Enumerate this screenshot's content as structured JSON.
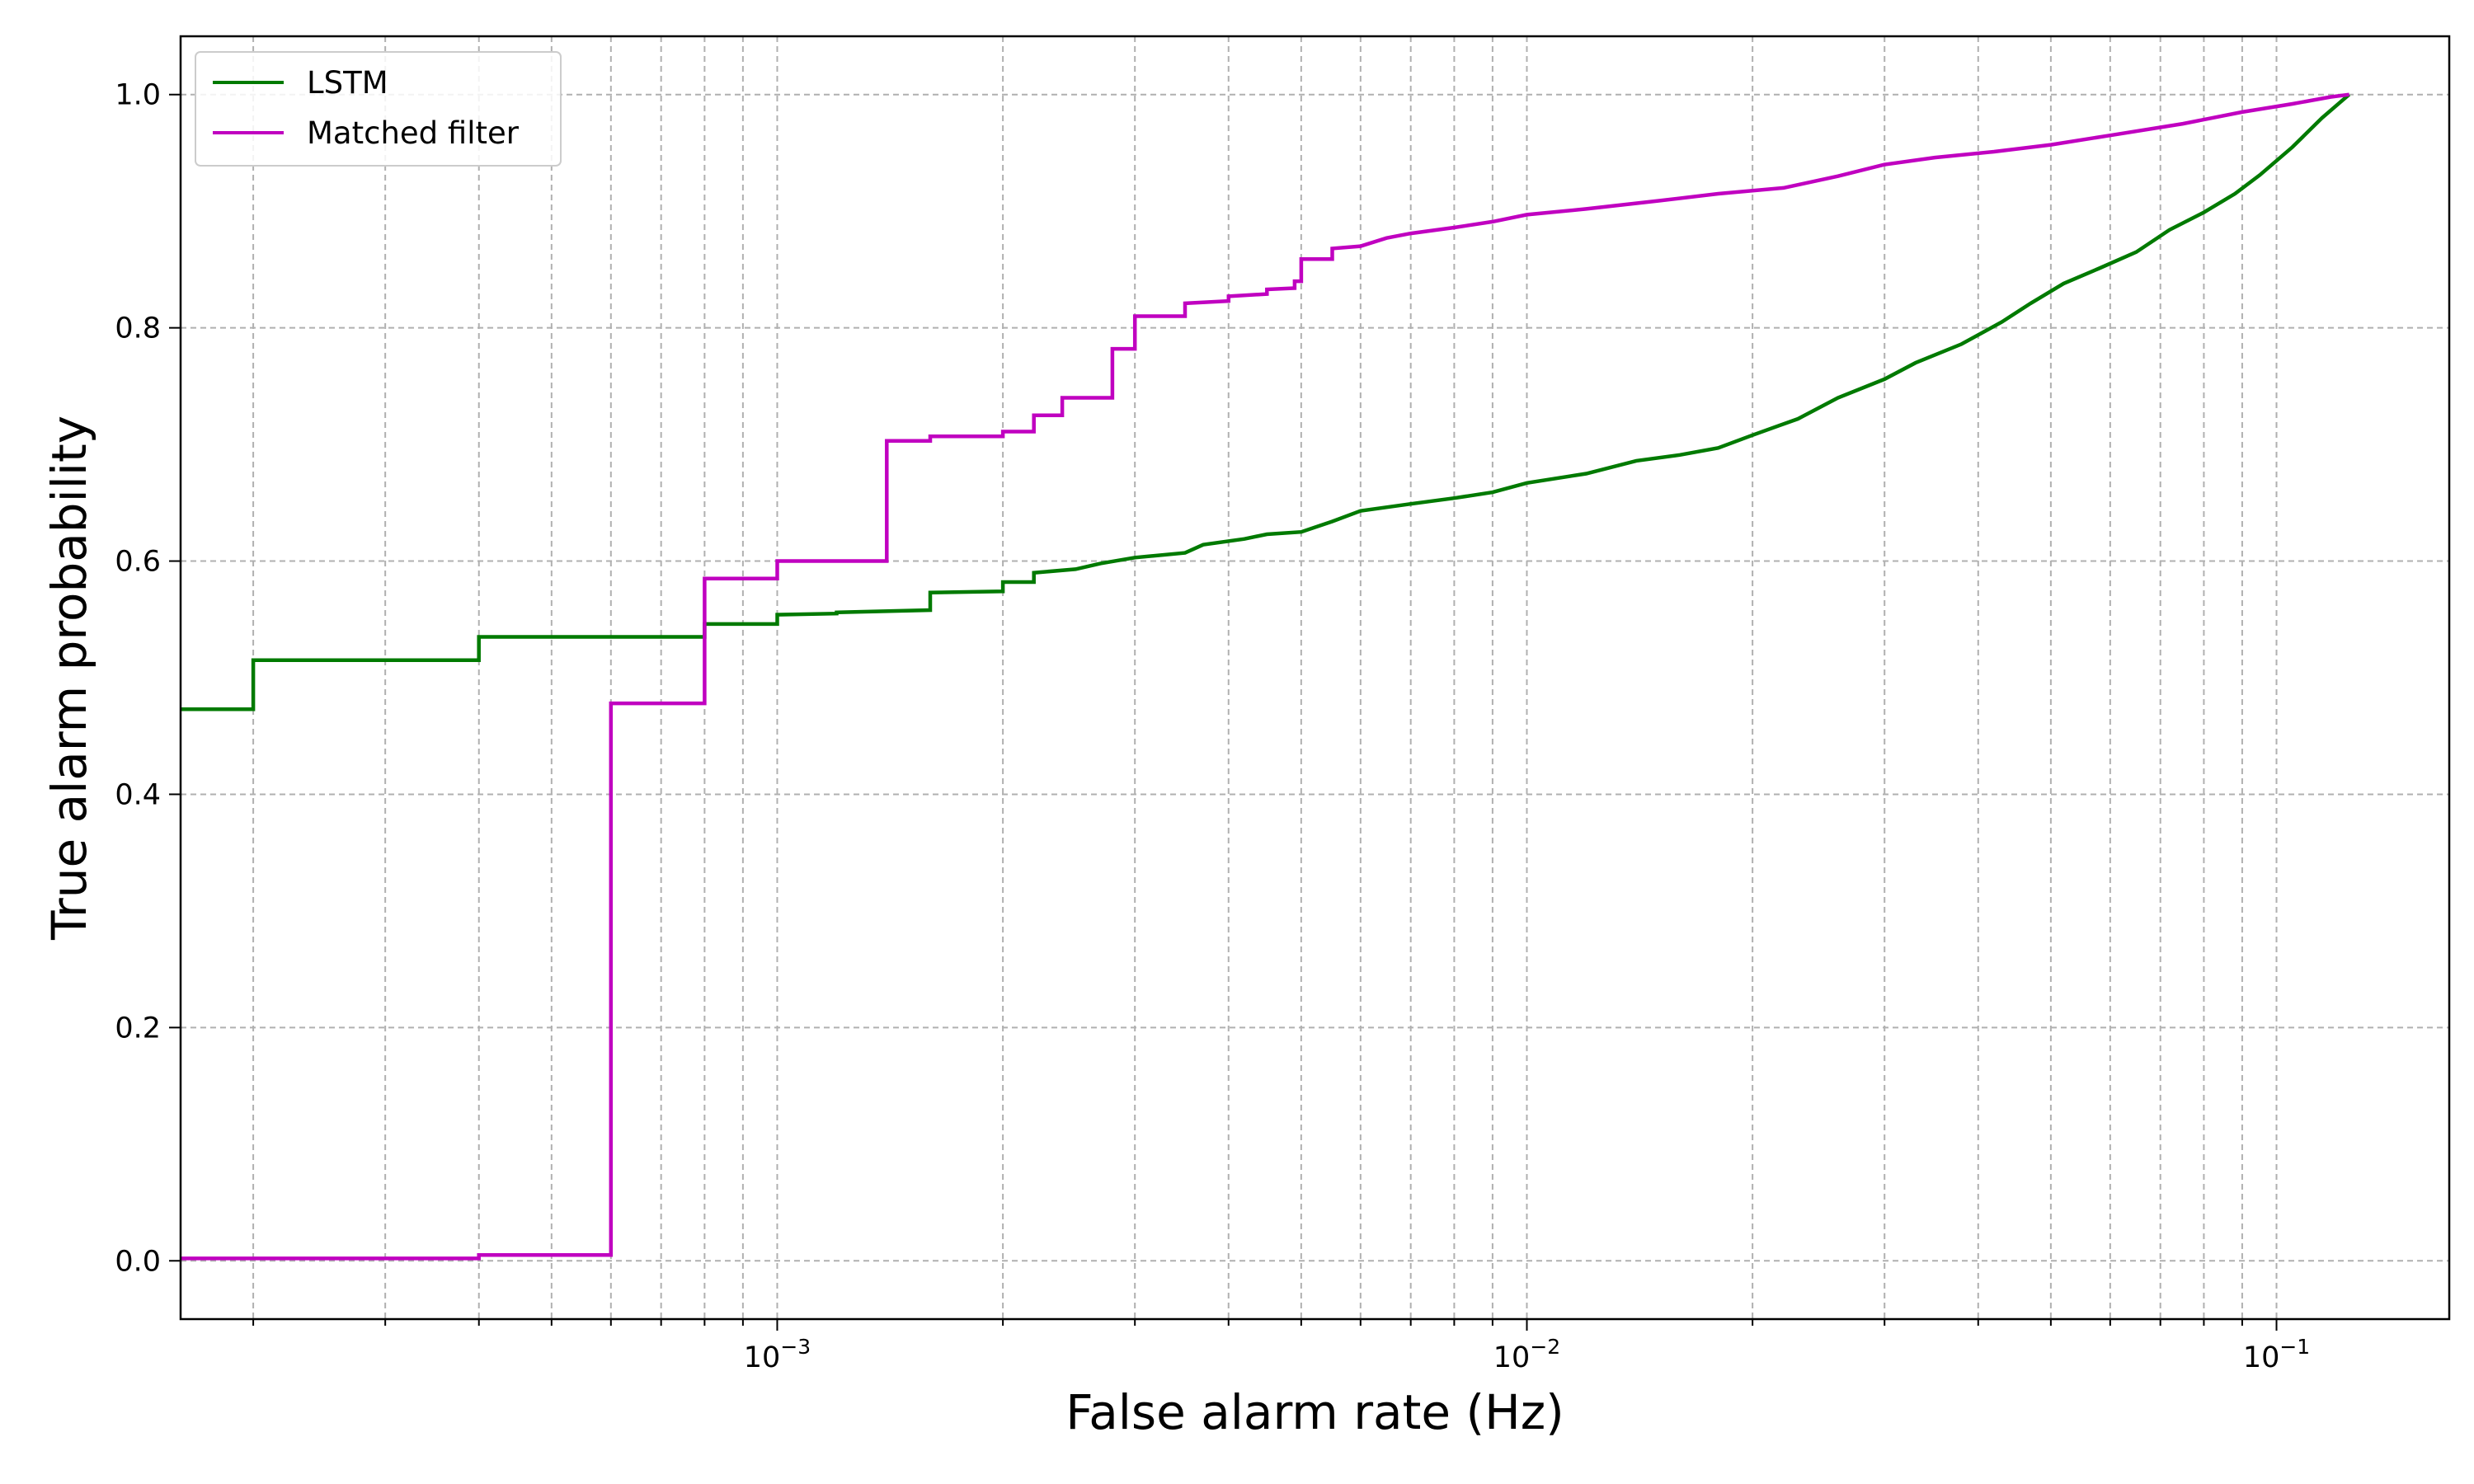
{
  "chart_data": {
    "type": "line",
    "title": "",
    "xlabel": "False alarm rate (Hz)",
    "ylabel": "True alarm probability",
    "x_scale": "log",
    "xlim": [
      0.00016,
      0.17
    ],
    "ylim": [
      -0.05,
      1.05
    ],
    "x_tick_labels": [
      {
        "value": 0.001,
        "base": "10",
        "exp": "−3"
      },
      {
        "value": 0.01,
        "base": "10",
        "exp": "−2"
      },
      {
        "value": 0.1,
        "base": "10",
        "exp": "−1"
      }
    ],
    "y_ticks": [
      0.0,
      0.2,
      0.4,
      0.6,
      0.8,
      1.0
    ],
    "y_tick_labels": [
      "0.0",
      "0.2",
      "0.4",
      "0.6",
      "0.8",
      "1.0"
    ],
    "grid": true,
    "legend_position": "top-left",
    "series": [
      {
        "name": "LSTM",
        "color": "#007a00",
        "step": true,
        "points": [
          [
            0.00016,
            0.473
          ],
          [
            0.0002,
            0.473
          ],
          [
            0.0002,
            0.515
          ],
          [
            0.0004,
            0.515
          ],
          [
            0.0004,
            0.535
          ],
          [
            0.0008,
            0.535
          ],
          [
            0.0008,
            0.546
          ],
          [
            0.001,
            0.546
          ],
          [
            0.001,
            0.554
          ],
          [
            0.0012,
            0.555
          ],
          [
            0.0012,
            0.556
          ],
          [
            0.0016,
            0.558
          ],
          [
            0.0016,
            0.573
          ],
          [
            0.002,
            0.574
          ],
          [
            0.002,
            0.582
          ],
          [
            0.0022,
            0.582
          ],
          [
            0.0022,
            0.59
          ],
          [
            0.0025,
            0.593
          ],
          [
            0.0027,
            0.598
          ],
          [
            0.003,
            0.603
          ],
          [
            0.0035,
            0.607
          ],
          [
            0.0037,
            0.614
          ],
          [
            0.0042,
            0.619
          ],
          [
            0.0045,
            0.623
          ],
          [
            0.005,
            0.625
          ],
          [
            0.0055,
            0.634
          ],
          [
            0.006,
            0.643
          ],
          [
            0.007,
            0.649
          ],
          [
            0.008,
            0.654
          ],
          [
            0.009,
            0.659
          ],
          [
            0.01,
            0.667
          ],
          [
            0.012,
            0.675
          ],
          [
            0.014,
            0.686
          ],
          [
            0.016,
            0.691
          ],
          [
            0.018,
            0.697
          ],
          [
            0.02,
            0.708
          ],
          [
            0.023,
            0.722
          ],
          [
            0.026,
            0.74
          ],
          [
            0.03,
            0.756
          ],
          [
            0.033,
            0.77
          ],
          [
            0.038,
            0.786
          ],
          [
            0.043,
            0.805
          ],
          [
            0.047,
            0.821
          ],
          [
            0.052,
            0.838
          ],
          [
            0.058,
            0.851
          ],
          [
            0.065,
            0.865
          ],
          [
            0.072,
            0.884
          ],
          [
            0.08,
            0.899
          ],
          [
            0.088,
            0.915
          ],
          [
            0.095,
            0.931
          ],
          [
            0.105,
            0.955
          ],
          [
            0.115,
            0.98
          ],
          [
            0.125,
            1.0
          ]
        ]
      },
      {
        "name": "Matched filter",
        "color": "#c000c0",
        "step": true,
        "points": [
          [
            0.00016,
            0.002
          ],
          [
            0.0004,
            0.002
          ],
          [
            0.0004,
            0.005
          ],
          [
            0.0006,
            0.005
          ],
          [
            0.0006,
            0.478
          ],
          [
            0.0008,
            0.478
          ],
          [
            0.0008,
            0.585
          ],
          [
            0.001,
            0.585
          ],
          [
            0.001,
            0.6
          ],
          [
            0.0014,
            0.6
          ],
          [
            0.0014,
            0.703
          ],
          [
            0.0016,
            0.703
          ],
          [
            0.0016,
            0.707
          ],
          [
            0.002,
            0.707
          ],
          [
            0.002,
            0.711
          ],
          [
            0.0022,
            0.711
          ],
          [
            0.0022,
            0.725
          ],
          [
            0.0024,
            0.725
          ],
          [
            0.0024,
            0.74
          ],
          [
            0.0028,
            0.74
          ],
          [
            0.0028,
            0.782
          ],
          [
            0.003,
            0.782
          ],
          [
            0.003,
            0.81
          ],
          [
            0.0035,
            0.81
          ],
          [
            0.0035,
            0.821
          ],
          [
            0.004,
            0.823
          ],
          [
            0.004,
            0.827
          ],
          [
            0.0045,
            0.829
          ],
          [
            0.0045,
            0.833
          ],
          [
            0.0049,
            0.834
          ],
          [
            0.0049,
            0.84
          ],
          [
            0.005,
            0.84
          ],
          [
            0.005,
            0.859
          ],
          [
            0.0055,
            0.859
          ],
          [
            0.0055,
            0.868
          ],
          [
            0.006,
            0.87
          ],
          [
            0.0065,
            0.877
          ],
          [
            0.007,
            0.881
          ],
          [
            0.008,
            0.886
          ],
          [
            0.009,
            0.891
          ],
          [
            0.01,
            0.897
          ],
          [
            0.012,
            0.902
          ],
          [
            0.015,
            0.909
          ],
          [
            0.018,
            0.915
          ],
          [
            0.022,
            0.92
          ],
          [
            0.026,
            0.93
          ],
          [
            0.03,
            0.94
          ],
          [
            0.035,
            0.946
          ],
          [
            0.042,
            0.951
          ],
          [
            0.05,
            0.957
          ],
          [
            0.06,
            0.965
          ],
          [
            0.075,
            0.975
          ],
          [
            0.09,
            0.985
          ],
          [
            0.105,
            0.992
          ],
          [
            0.118,
            0.998
          ],
          [
            0.125,
            1.0
          ]
        ]
      }
    ]
  }
}
